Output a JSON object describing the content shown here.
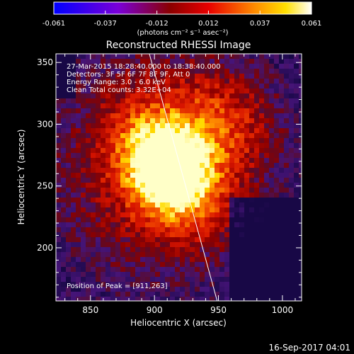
{
  "chart_data": {
    "type": "heatmap",
    "title": "Reconstructed RHESSI Image",
    "xlabel": "Heliocentric X (arcsec)",
    "ylabel": "Heliocentric Y (arcsec)",
    "xlim": [
      823,
      1015
    ],
    "ylim": [
      157,
      357
    ],
    "xticks": [
      850,
      900,
      950,
      1000
    ],
    "yticks": [
      200,
      250,
      300,
      350
    ],
    "grid": false,
    "colorbar": {
      "position": "top",
      "range": [
        -0.061,
        0.061
      ],
      "ticks": [
        "-0.061",
        "-0.037",
        "-0.012",
        "0.012",
        "0.037",
        "0.061"
      ],
      "units": "(photons cm⁻² s⁻¹ asec⁻²)"
    },
    "annotations": [
      "27-Mar-2015 18:28:40.000 to 18:38:40.000",
      "Detectors: 3F 5F 6F 7F 8F 9F, Att 0",
      "Energy Range: 3.0 - 6.0 keV",
      "Clean    Total counts: 3.32E+04"
    ],
    "peak_label": "Position of Peak = [911,263]",
    "peak": [
      911,
      263
    ],
    "limb_line": [
      [
        896,
        357
      ],
      [
        949,
        157
      ]
    ],
    "footer_timestamp": "16-Sep-2017 04:01"
  }
}
